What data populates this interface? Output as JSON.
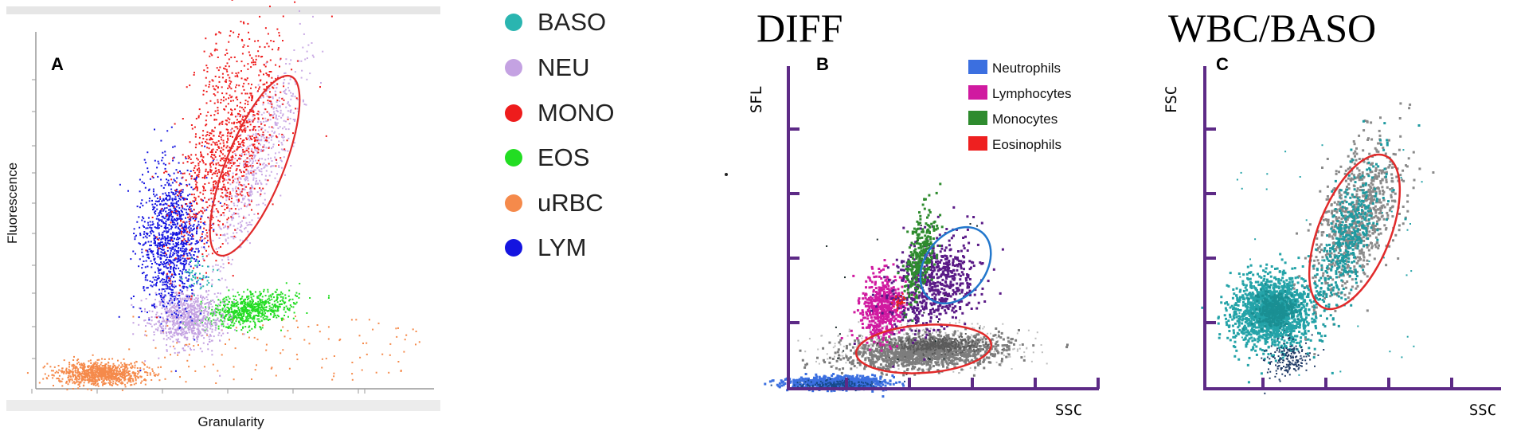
{
  "chart_data": [
    {
      "panel": "A",
      "type": "scatter",
      "xlabel": "Granularity",
      "ylabel": "Fluorescence",
      "grid": false,
      "legend_placement": "right",
      "series": [
        {
          "name": "BASO",
          "color": "#2ab5b0"
        },
        {
          "name": "NEU",
          "color": "#c4a2e2"
        },
        {
          "name": "MONO",
          "color": "#ee1c1c"
        },
        {
          "name": "EOS",
          "color": "#22dd22"
        },
        {
          "name": "uRBC",
          "color": "#f58a4b"
        },
        {
          "name": "LYM",
          "color": "#1414e0"
        }
      ]
    },
    {
      "panel": "B",
      "type": "scatter",
      "title": "DIFF",
      "xlabel": "SSC",
      "ylabel": "SFL",
      "grid": false,
      "legend_placement": "top-right",
      "series": [
        {
          "name": "Neutrophils",
          "color": "#3b6fe0"
        },
        {
          "name": "Lymphocytes",
          "color": "#d01aa0"
        },
        {
          "name": "Monocytes",
          "color": "#2e8b2e"
        },
        {
          "name": "Eosinophils",
          "color": "#ee2020"
        }
      ]
    },
    {
      "panel": "C",
      "type": "scatter",
      "title": "WBC/BASO",
      "xlabel": "SSC",
      "ylabel": "FSC",
      "grid": false
    }
  ]
}
